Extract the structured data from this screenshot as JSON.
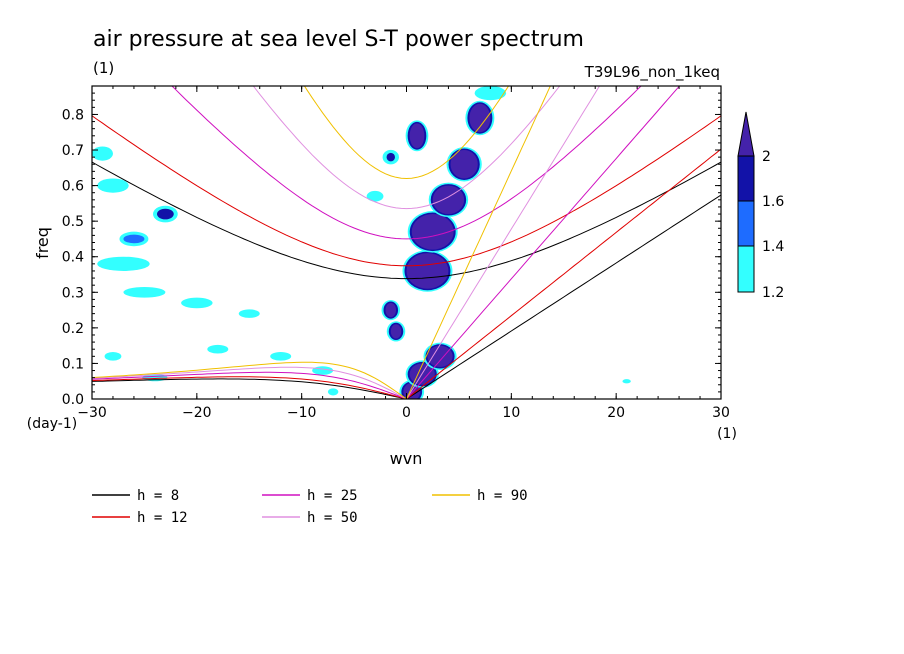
{
  "chart_data": {
    "type": "contour",
    "title": "air pressure at sea level S-T power spectrum",
    "units_label": "(1)",
    "run_label": "T39L96_non_1keq",
    "xlabel": "wvn",
    "ylabel": "freq",
    "x_unit_label": "(1)",
    "y_unit_label": "(day-1)",
    "xlim": [
      -30,
      30
    ],
    "ylim": [
      0,
      0.88
    ],
    "x_ticks": [
      -30,
      -20,
      -10,
      0,
      10,
      20,
      30
    ],
    "y_ticks": [
      0.0,
      0.1,
      0.2,
      0.3,
      0.4,
      0.5,
      0.6,
      0.7,
      0.8
    ],
    "colorbar": {
      "levels": [
        1.2,
        1.4,
        1.6,
        2
      ],
      "colors": [
        "#33ffff",
        "#1e6cff",
        "#1212a8",
        "#4422aa"
      ]
    },
    "dispersion_curves": [
      {
        "label": "h =  8",
        "h": 8,
        "color": "#000000"
      },
      {
        "label": "h = 12",
        "h": 12,
        "color": "#e00000"
      },
      {
        "label": "h = 25",
        "h": 25,
        "color": "#d010c0"
      },
      {
        "label": "h = 50",
        "h": 50,
        "color": "#e090e0"
      },
      {
        "label": "h = 90",
        "h": 90,
        "color": "#f0c000"
      }
    ],
    "contour_regions": [
      {
        "x": 0.5,
        "y": 0.02,
        "rx": 0.8,
        "ry": 0.025,
        "level": 2
      },
      {
        "x": 1.5,
        "y": 0.07,
        "rx": 1.2,
        "ry": 0.03,
        "level": 2
      },
      {
        "x": 3.2,
        "y": 0.12,
        "rx": 1.2,
        "ry": 0.03,
        "level": 2
      },
      {
        "x": 2.0,
        "y": 0.36,
        "rx": 2.0,
        "ry": 0.05,
        "level": 2
      },
      {
        "x": 2.5,
        "y": 0.47,
        "rx": 2.0,
        "ry": 0.05,
        "level": 2
      },
      {
        "x": 4.0,
        "y": 0.56,
        "rx": 1.5,
        "ry": 0.04,
        "level": 2
      },
      {
        "x": 5.5,
        "y": 0.66,
        "rx": 1.3,
        "ry": 0.04,
        "level": 2
      },
      {
        "x": 7.0,
        "y": 0.79,
        "rx": 1.0,
        "ry": 0.04,
        "level": 2
      },
      {
        "x": 1.0,
        "y": 0.74,
        "rx": 0.7,
        "ry": 0.035,
        "level": 2
      },
      {
        "x": -1.5,
        "y": 0.25,
        "rx": 0.5,
        "ry": 0.02,
        "level": 2
      },
      {
        "x": -1.0,
        "y": 0.19,
        "rx": 0.5,
        "ry": 0.02,
        "level": 2
      },
      {
        "x": -23.0,
        "y": 0.52,
        "rx": 0.8,
        "ry": 0.015,
        "level": 1.6
      },
      {
        "x": -26.0,
        "y": 0.45,
        "rx": 1.0,
        "ry": 0.012,
        "level": 1.4
      },
      {
        "x": -27.0,
        "y": 0.38,
        "rx": 2.5,
        "ry": 0.02,
        "level": 1.2
      },
      {
        "x": -28.0,
        "y": 0.6,
        "rx": 1.5,
        "ry": 0.02,
        "level": 1.2
      },
      {
        "x": -29.0,
        "y": 0.69,
        "rx": 1.0,
        "ry": 0.02,
        "level": 1.2
      },
      {
        "x": -25.0,
        "y": 0.3,
        "rx": 2.0,
        "ry": 0.015,
        "level": 1.2
      },
      {
        "x": -20.0,
        "y": 0.27,
        "rx": 1.5,
        "ry": 0.015,
        "level": 1.2
      },
      {
        "x": -15.0,
        "y": 0.24,
        "rx": 1.0,
        "ry": 0.012,
        "level": 1.2
      },
      {
        "x": -18.0,
        "y": 0.14,
        "rx": 1.0,
        "ry": 0.012,
        "level": 1.2
      },
      {
        "x": -12.0,
        "y": 0.12,
        "rx": 1.0,
        "ry": 0.012,
        "level": 1.2
      },
      {
        "x": -8.0,
        "y": 0.08,
        "rx": 1.0,
        "ry": 0.012,
        "level": 1.2
      },
      {
        "x": -28.0,
        "y": 0.12,
        "rx": 0.8,
        "ry": 0.012,
        "level": 1.2
      },
      {
        "x": -24.0,
        "y": 0.06,
        "rx": 1.2,
        "ry": 0.01,
        "level": 1.2
      },
      {
        "x": -3.0,
        "y": 0.57,
        "rx": 0.8,
        "ry": 0.015,
        "level": 1.2
      },
      {
        "x": -1.5,
        "y": 0.68,
        "rx": 0.4,
        "ry": 0.012,
        "level": 1.6
      },
      {
        "x": 8.0,
        "y": 0.86,
        "rx": 1.5,
        "ry": 0.02,
        "level": 1.2
      },
      {
        "x": -7.0,
        "y": 0.02,
        "rx": 0.5,
        "ry": 0.01,
        "level": 1.2
      },
      {
        "x": 21.0,
        "y": 0.05,
        "rx": 0.4,
        "ry": 0.006,
        "level": 1.2
      }
    ]
  },
  "legend": [
    {
      "label": "h =  8",
      "color": "#000000"
    },
    {
      "label": "h = 12",
      "color": "#e00000"
    },
    {
      "label": "h = 25",
      "color": "#d010c0"
    },
    {
      "label": "h = 50",
      "color": "#e090e0"
    },
    {
      "label": "h = 90",
      "color": "#f0c000"
    }
  ]
}
